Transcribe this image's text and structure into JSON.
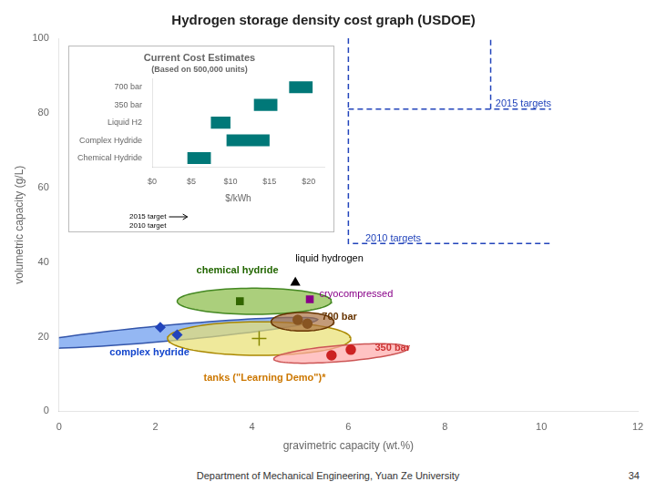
{
  "chart_data": [
    {
      "type": "scatter",
      "title": "Hydrogen storage density cost graph (USDOE)",
      "xlabel": "gravimetric capacity (wt.%)",
      "ylabel": "volumetric capacity (g/L)",
      "xlim": [
        0,
        12
      ],
      "xticks": [
        0,
        2,
        4,
        6,
        8,
        10,
        12
      ],
      "ylim": [
        0,
        100
      ],
      "yticks": [
        0,
        20,
        40,
        60,
        80,
        100
      ],
      "grid": false,
      "regions": [
        {
          "label": "complex hydride",
          "x": 2.3,
          "y": 21,
          "width": 2.6,
          "height": 10,
          "angle": -35,
          "color": "#6699ee",
          "edge_color": "#3355aa",
          "label_x": 1.05,
          "label_y": 14.5,
          "label_color": "#1144cc"
        },
        {
          "label": "chemical hydride",
          "x": 4.05,
          "y": 29.5,
          "width": 3.2,
          "height": 7,
          "angle": 0,
          "color": "#88bb44",
          "edge_color": "#448822",
          "label_x": 2.85,
          "label_y": 36.5,
          "label_color": "#226600"
        },
        {
          "label": "tanks (\"Learning Demo\")*",
          "x": 4.15,
          "y": 19.5,
          "width": 3.8,
          "height": 9,
          "angle": 0,
          "color": "#e8e070",
          "edge_color": "#aa8800",
          "label_x": 3.0,
          "label_y": 7.5,
          "label_color": "#cc7700"
        },
        {
          "label": "700 bar",
          "x": 5.05,
          "y": 24,
          "width": 1.3,
          "height": 5,
          "angle": 0,
          "color": "#aa7040",
          "edge_color": "#663300",
          "label_x": 5.45,
          "label_y": 24,
          "label_color": "#663300"
        },
        {
          "label": "350 bar",
          "x": 5.85,
          "y": 15.5,
          "width": 2.2,
          "height": 5.5,
          "angle": -20,
          "color": "#ffaaaa",
          "edge_color": "#cc5555",
          "label_x": 6.55,
          "label_y": 15.5,
          "label_color": "#cc3333"
        }
      ],
      "points": [
        {
          "x": 4.15,
          "y": 19.5,
          "color": "#888800",
          "marker": "plus"
        },
        {
          "x": 4.95,
          "y": 24.5,
          "color": "#885522",
          "marker": "circle"
        },
        {
          "x": 5.15,
          "y": 23.5,
          "color": "#885522",
          "marker": "circle"
        },
        {
          "x": 5.65,
          "y": 15.0,
          "color": "#cc2222",
          "marker": "circle"
        },
        {
          "x": 6.05,
          "y": 16.5,
          "color": "#cc2222",
          "marker": "circle"
        },
        {
          "x": 2.1,
          "y": 22.5,
          "color": "#2244bb",
          "marker": "diamond"
        },
        {
          "x": 2.45,
          "y": 20.5,
          "color": "#2244bb",
          "marker": "diamond"
        },
        {
          "x": 3.75,
          "y": 29.5,
          "color": "#336600",
          "marker": "square"
        },
        {
          "x": 4.9,
          "y": 34.5,
          "color": "black",
          "marker": "triangle"
        },
        {
          "x": 5.2,
          "y": 30,
          "color": "#880088",
          "marker": "square"
        }
      ],
      "lines": [
        {
          "x": [
            6.0,
            6.0,
            10.2
          ],
          "y": [
            100,
            45,
            45
          ],
          "color": "#2244bb",
          "line_style": "dashed"
        },
        {
          "x": [
            8.95,
            8.95
          ],
          "y": [
            81,
            100
          ],
          "color": "#2244bb",
          "line_style": "dashed"
        },
        {
          "x": [
            6.0,
            8.95,
            10.2
          ],
          "y": [
            81,
            81,
            81
          ],
          "color": "#2244bb",
          "line_style": "dashed"
        }
      ],
      "annotations": [
        {
          "text": "liquid hydrogen",
          "x": 4.9,
          "y": 39.5,
          "color": "black"
        },
        {
          "text": "cryocompressed",
          "x": 5.4,
          "y": 30,
          "color": "#880088"
        },
        {
          "text": "2010 targets",
          "x": 6.35,
          "y": 45,
          "color": "#2244bb"
        },
        {
          "text": "2015 targets",
          "x": 9.05,
          "y": 81,
          "color": "#2244bb"
        }
      ],
      "footer": "Department of Mechanical Engineering, Yuan Ze University",
      "page_number": "34"
    },
    {
      "type": "bar",
      "orientation": "horizontal",
      "title": "Current Cost Estimates",
      "subtitle": "(Based on 500,000 units)",
      "xlabel": "$/kWh",
      "categories": [
        "700 bar",
        "350 bar",
        "Liquid H2",
        "Complex Hydride",
        "Chemical Hydride"
      ],
      "values": [
        [
          17.5,
          20.5
        ],
        [
          13.0,
          16.0
        ],
        [
          7.5,
          10.0
        ],
        [
          9.5,
          15.0
        ],
        [
          4.5,
          7.5
        ]
      ],
      "color": "#007878",
      "xlim": [
        0,
        22
      ],
      "xticks": [
        {
          "value": 0,
          "label": "$0"
        },
        {
          "value": 5,
          "label": "$5"
        },
        {
          "value": 10,
          "label": "$10"
        },
        {
          "value": 15,
          "label": "$15"
        },
        {
          "value": 20,
          "label": "$20"
        }
      ],
      "grid": false,
      "annotations": [
        {
          "text": "2015 target",
          "x": 1.8
        },
        {
          "text": "2010 target",
          "x": 1.8
        }
      ],
      "arrow": {
        "x_from": 1.8,
        "x_to": 4.5
      }
    }
  ]
}
